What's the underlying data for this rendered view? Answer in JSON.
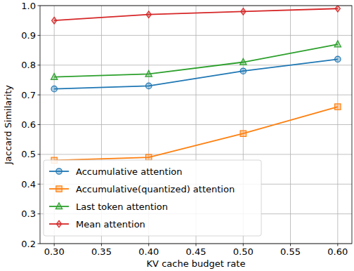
{
  "chart_data": {
    "type": "line",
    "x_label": "KV cache budget rate",
    "y_label": "Jaccard Similarity",
    "x": [
      0.3,
      0.4,
      0.5,
      0.6
    ],
    "series": [
      {
        "name": "Accumulative attention",
        "color": "#1f77b4",
        "marker": "circle",
        "values": [
          0.72,
          0.73,
          0.78,
          0.82
        ]
      },
      {
        "name": "Accumulative(quantized) attention",
        "color": "#ff7f0e",
        "marker": "square",
        "values": [
          0.48,
          0.49,
          0.57,
          0.66
        ]
      },
      {
        "name": "Last token attention",
        "color": "#2ca02c",
        "marker": "triangle",
        "values": [
          0.76,
          0.77,
          0.81,
          0.87
        ]
      },
      {
        "name": "Mean attention",
        "color": "#d62728",
        "marker": "diamond",
        "values": [
          0.95,
          0.97,
          0.98,
          0.99
        ]
      }
    ],
    "xlim": [
      0.285,
      0.615
    ],
    "xticks": [
      {
        "value": 0.3,
        "label": "0.30"
      },
      {
        "value": 0.35,
        "label": "0.35"
      },
      {
        "value": 0.4,
        "label": "0.40"
      },
      {
        "value": 0.45,
        "label": "0.45"
      },
      {
        "value": 0.5,
        "label": "0.50"
      },
      {
        "value": 0.55,
        "label": "0.55"
      },
      {
        "value": 0.6,
        "label": "0.60"
      }
    ],
    "ylim": [
      0.2,
      1.0
    ],
    "yticks": [
      0.2,
      0.3,
      0.4,
      0.5,
      0.6,
      0.7,
      0.8,
      0.9,
      {
        "value": 1.0,
        "label": "1.0"
      }
    ],
    "grid": true,
    "legend": "lower left"
  }
}
